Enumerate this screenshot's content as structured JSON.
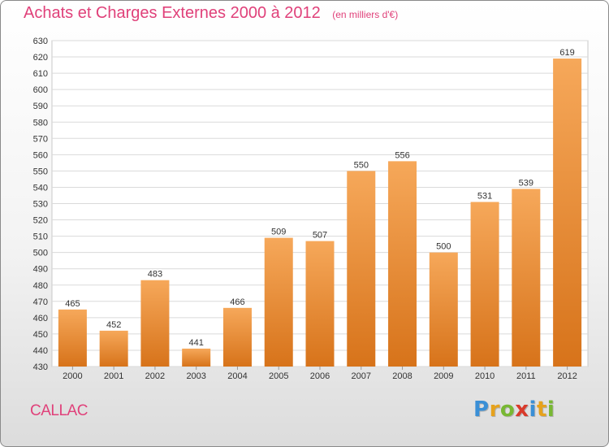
{
  "header": {
    "title": "Achats et Charges Externes 2000 à 2012",
    "unit": "(en milliers d'€)"
  },
  "commune": "CALLAC",
  "brand": {
    "name": "Proxiti",
    "letters": [
      {
        "char": "P",
        "color": "#3a8fd6"
      },
      {
        "char": "r",
        "color": "#e6a21c"
      },
      {
        "char": "o",
        "color": "#78b833"
      },
      {
        "char": "x",
        "color": "#d93a2b"
      },
      {
        "char": "i",
        "color": "#3a8fd6"
      },
      {
        "char": "t",
        "color": "#e6a21c"
      },
      {
        "char": "i",
        "color": "#78b833"
      }
    ]
  },
  "colors": {
    "bar_top": "#f6a85a",
    "bar_bottom": "#d7731a",
    "title": "#e0417a"
  },
  "chart_data": {
    "type": "bar",
    "title": "Achats et Charges Externes 2000 à 2012",
    "subtitle": "(en milliers d'€)",
    "xlabel": "",
    "ylabel": "",
    "categories": [
      "2000",
      "2001",
      "2002",
      "2003",
      "2004",
      "2005",
      "2006",
      "2007",
      "2008",
      "2009",
      "2010",
      "2011",
      "2012"
    ],
    "values": [
      465,
      452,
      483,
      441,
      466,
      509,
      507,
      550,
      556,
      500,
      531,
      539,
      619
    ],
    "ylim": [
      430,
      630
    ],
    "ytick_step": 10,
    "grid": true,
    "data_labels": true
  }
}
